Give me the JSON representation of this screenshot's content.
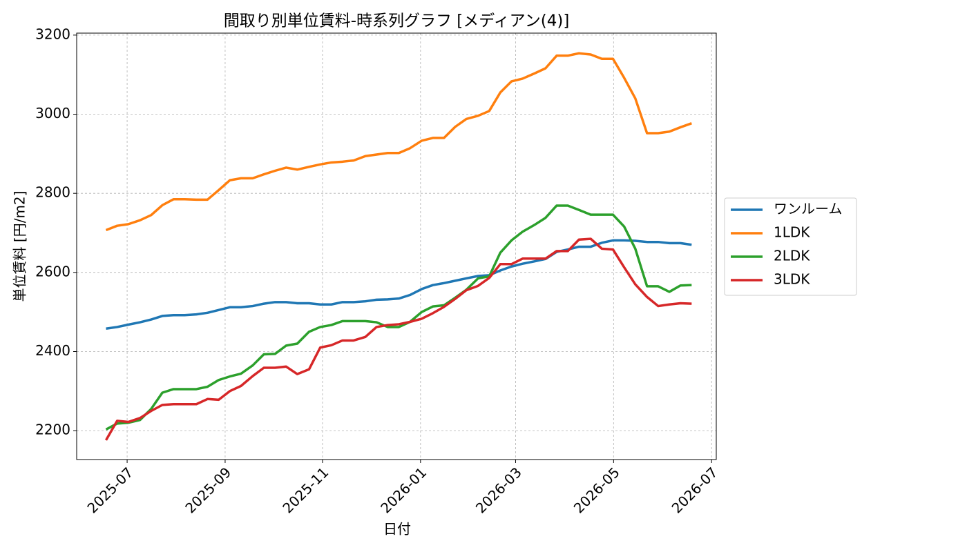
{
  "chart_data": {
    "type": "line",
    "title": "間取り別単位賃料-時系列グラフ [メディアン(4)]",
    "x_label": "日付",
    "y_label": "単位賃料 [円/m2]",
    "x": [
      2025.464,
      2025.483,
      2025.502,
      2025.522,
      2025.541,
      2025.56,
      2025.579,
      2025.598,
      2025.618,
      2025.637,
      2025.656,
      2025.675,
      2025.694,
      2025.714,
      2025.733,
      2025.752,
      2025.771,
      2025.79,
      2025.81,
      2025.829,
      2025.848,
      2025.867,
      2025.886,
      2025.906,
      2025.925,
      2025.944,
      2025.963,
      2025.982,
      2026.002,
      2026.021,
      2026.04,
      2026.059,
      2026.078,
      2026.098,
      2026.117,
      2026.136,
      2026.155,
      2026.174,
      2026.194,
      2026.213,
      2026.232,
      2026.251,
      2026.27,
      2026.29,
      2026.309,
      2026.328,
      2026.347,
      2026.366,
      2026.386,
      2026.405,
      2026.424,
      2026.443,
      2026.462
    ],
    "series": [
      {
        "name": "ワンルーム",
        "color": "#1f77b4",
        "values": [
          2458,
          2462,
          2468,
          2474,
          2481,
          2490,
          2492,
          2492,
          2494,
          2498,
          2505,
          2512,
          2512,
          2515,
          2521,
          2525,
          2525,
          2522,
          2522,
          2519,
          2519,
          2525,
          2525,
          2527,
          2531,
          2532,
          2534,
          2543,
          2558,
          2568,
          2573,
          2579,
          2585,
          2591,
          2593,
          2605,
          2615,
          2622,
          2628,
          2634,
          2652,
          2658,
          2665,
          2665,
          2675,
          2681,
          2681,
          2680,
          2677,
          2677,
          2674,
          2674,
          2670
        ]
      },
      {
        "name": "1LDK",
        "color": "#ff7f0e",
        "values": [
          2707,
          2718,
          2722,
          2732,
          2745,
          2770,
          2785,
          2785,
          2784,
          2784,
          2808,
          2833,
          2838,
          2838,
          2848,
          2857,
          2865,
          2860,
          2867,
          2873,
          2878,
          2880,
          2883,
          2894,
          2898,
          2902,
          2902,
          2914,
          2933,
          2940,
          2940,
          2968,
          2988,
          2996,
          3008,
          3055,
          3083,
          3090,
          3103,
          3116,
          3148,
          3148,
          3154,
          3151,
          3140,
          3140,
          3092,
          3040,
          2952,
          2952,
          2956,
          2967,
          2977
        ]
      },
      {
        "name": "2LDK",
        "color": "#2ca02c",
        "values": [
          2203,
          2218,
          2220,
          2227,
          2255,
          2296,
          2305,
          2305,
          2305,
          2311,
          2328,
          2337,
          2344,
          2365,
          2393,
          2394,
          2415,
          2420,
          2450,
          2462,
          2467,
          2477,
          2477,
          2477,
          2474,
          2462,
          2462,
          2475,
          2500,
          2514,
          2517,
          2536,
          2556,
          2585,
          2590,
          2650,
          2681,
          2703,
          2720,
          2738,
          2769,
          2769,
          2758,
          2746,
          2746,
          2746,
          2716,
          2660,
          2565,
          2565,
          2551,
          2567,
          2568
        ]
      },
      {
        "name": "3LDK",
        "color": "#d62728",
        "values": [
          2176,
          2225,
          2222,
          2232,
          2250,
          2265,
          2267,
          2267,
          2267,
          2280,
          2278,
          2300,
          2313,
          2338,
          2359,
          2359,
          2362,
          2343,
          2355,
          2410,
          2416,
          2428,
          2428,
          2437,
          2462,
          2467,
          2469,
          2475,
          2483,
          2497,
          2513,
          2533,
          2555,
          2566,
          2586,
          2621,
          2621,
          2635,
          2635,
          2635,
          2654,
          2654,
          2683,
          2685,
          2660,
          2658,
          2613,
          2570,
          2538,
          2515,
          2519,
          2522,
          2521
        ]
      }
    ],
    "xlim": [
      2025.414,
      2026.504
    ],
    "xticks": [
      {
        "value": 2025.5,
        "label": "2025-07"
      },
      {
        "value": 2025.667,
        "label": "2025-09"
      },
      {
        "value": 2025.833,
        "label": "2025-11"
      },
      {
        "value": 2026.0,
        "label": "2026-01"
      },
      {
        "value": 2026.162,
        "label": "2026-03"
      },
      {
        "value": 2026.329,
        "label": "2026-05"
      },
      {
        "value": 2026.496,
        "label": "2026-07"
      }
    ],
    "ylim": [
      2127,
      3205
    ],
    "yticks": [
      2200,
      2400,
      2600,
      2800,
      3000,
      3200
    ],
    "grid": true,
    "legend": "right"
  }
}
